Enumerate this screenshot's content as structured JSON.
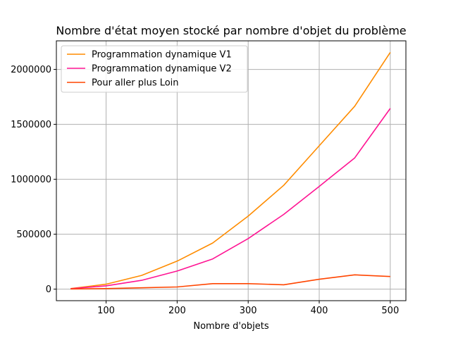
{
  "chart_data": {
    "type": "line",
    "title": "Nombre d'état moyen stocké par nombre d'objet du problème",
    "xlabel": "Nombre d'objets",
    "ylabel": "",
    "x": [
      50,
      100,
      150,
      200,
      250,
      300,
      350,
      400,
      450,
      500
    ],
    "xlim": [
      30,
      522
    ],
    "ylim": [
      -105000,
      2260000
    ],
    "xticks": [
      100,
      200,
      300,
      400,
      500
    ],
    "yticks": [
      0,
      500000,
      1000000,
      1500000,
      2000000
    ],
    "grid": true,
    "legend_position": "upper left",
    "series": [
      {
        "name": "Programmation dynamique V1",
        "color": "#ff8c00",
        "values": [
          5000,
          45000,
          125000,
          255000,
          420000,
          665000,
          945000,
          1305000,
          1665000,
          2155000
        ]
      },
      {
        "name": "Programmation dynamique V2",
        "color": "#ff1493",
        "values": [
          4000,
          30000,
          80000,
          165000,
          275000,
          460000,
          680000,
          935000,
          1195000,
          1645000
        ]
      },
      {
        "name": "Pour aller plus Loin",
        "color": "#ff4500",
        "values": [
          2000,
          5000,
          12000,
          20000,
          50000,
          50000,
          40000,
          90000,
          130000,
          115000
        ]
      }
    ]
  }
}
